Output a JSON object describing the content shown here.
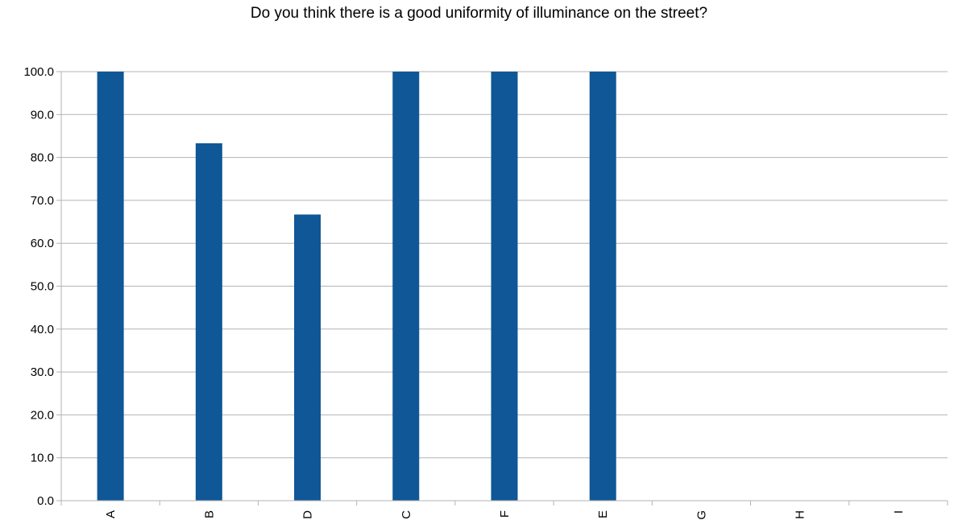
{
  "chart_data": {
    "type": "bar",
    "title": "Do you think there is a good uniformity of illuminance on the street?",
    "xlabel": "",
    "ylabel": "",
    "categories": [
      "A",
      "B",
      "D",
      "C",
      "F",
      "E",
      "G",
      "H",
      "I"
    ],
    "values": [
      100,
      83.3,
      66.7,
      100,
      100,
      100,
      0,
      0,
      0
    ],
    "ylim": [
      0,
      100
    ],
    "y_ticks": [
      "0.0",
      "10.0",
      "20.0",
      "30.0",
      "40.0",
      "50.0",
      "60.0",
      "70.0",
      "80.0",
      "90.0",
      "100.0"
    ],
    "grid": true,
    "legend": "none",
    "bar_color": "#0f5796",
    "grid_color": "#b3b3b3",
    "x_tick_rotation": "vertical"
  }
}
